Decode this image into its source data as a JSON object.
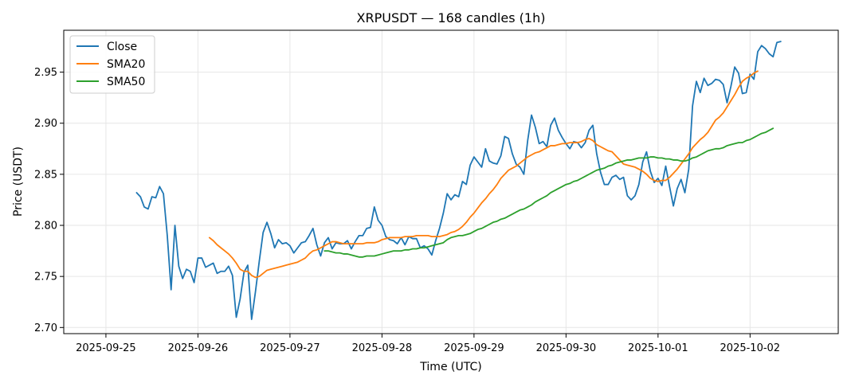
{
  "chart_data": {
    "type": "line",
    "title": "XRPUSDT — 168 candles (1h)",
    "xlabel": "Time (UTC)",
    "ylabel": "Price (USDT)",
    "xlim": [
      -11,
      191
    ],
    "ylim": [
      2.694,
      2.991
    ],
    "x_ticks": [
      {
        "label": "2025-09-25",
        "x": 0
      },
      {
        "label": "2025-09-26",
        "x": 24
      },
      {
        "label": "2025-09-27",
        "x": 48
      },
      {
        "label": "2025-09-28",
        "x": 72
      },
      {
        "label": "2025-09-29",
        "x": 96
      },
      {
        "label": "2025-09-30",
        "x": 120
      },
      {
        "label": "2025-10-01",
        "x": 144
      },
      {
        "label": "2025-10-02",
        "x": 168
      }
    ],
    "y_ticks": [
      2.7,
      2.75,
      2.8,
      2.85,
      2.9,
      2.95
    ],
    "y_tick_labels": [
      "2.70",
      "2.75",
      "2.80",
      "2.85",
      "2.90",
      "2.95"
    ],
    "grid": true,
    "legend_position": "top-left",
    "series": [
      {
        "name": "Close",
        "color": "#1f77b4",
        "x_start": 8,
        "values": [
          2.832,
          2.828,
          2.818,
          2.816,
          2.828,
          2.827,
          2.838,
          2.831,
          2.79,
          2.737,
          2.8,
          2.76,
          2.748,
          2.757,
          2.755,
          2.744,
          2.768,
          2.768,
          2.759,
          2.761,
          2.763,
          2.753,
          2.755,
          2.755,
          2.76,
          2.751,
          2.71,
          2.728,
          2.754,
          2.761,
          2.708,
          2.735,
          2.765,
          2.793,
          2.803,
          2.792,
          2.778,
          2.786,
          2.782,
          2.783,
          2.78,
          2.773,
          2.778,
          2.783,
          2.784,
          2.79,
          2.797,
          2.781,
          2.77,
          2.783,
          2.788,
          2.777,
          2.783,
          2.782,
          2.782,
          2.785,
          2.777,
          2.784,
          2.79,
          2.79,
          2.797,
          2.798,
          2.818,
          2.805,
          2.8,
          2.789,
          2.786,
          2.785,
          2.782,
          2.788,
          2.781,
          2.789,
          2.787,
          2.787,
          2.778,
          2.78,
          2.777,
          2.771,
          2.785,
          2.797,
          2.812,
          2.831,
          2.825,
          2.83,
          2.828,
          2.843,
          2.84,
          2.859,
          2.867,
          2.862,
          2.857,
          2.875,
          2.863,
          2.861,
          2.86,
          2.868,
          2.887,
          2.885,
          2.87,
          2.86,
          2.857,
          2.85,
          2.883,
          2.908,
          2.896,
          2.88,
          2.882,
          2.877,
          2.898,
          2.905,
          2.893,
          2.886,
          2.88,
          2.875,
          2.882,
          2.881,
          2.876,
          2.881,
          2.893,
          2.898,
          2.87,
          2.852,
          2.84,
          2.84,
          2.847,
          2.849,
          2.845,
          2.847,
          2.829,
          2.825,
          2.829,
          2.84,
          2.862,
          2.872,
          2.853,
          2.842,
          2.846,
          2.839,
          2.858,
          2.838,
          2.819,
          2.836,
          2.845,
          2.832,
          2.855,
          2.917,
          2.941,
          2.93,
          2.944,
          2.937,
          2.939,
          2.943,
          2.942,
          2.938,
          2.92,
          2.936,
          2.955,
          2.949,
          2.929,
          2.93,
          2.948,
          2.943,
          2.97,
          2.976,
          2.973,
          2.968,
          2.965,
          2.979,
          2.98
        ]
      },
      {
        "name": "SMA20",
        "color": "#ff7f0e",
        "x_start": 27,
        "values": [
          2.788,
          2.785,
          2.781,
          2.778,
          2.775,
          2.772,
          2.768,
          2.763,
          2.757,
          2.755,
          2.755,
          2.751,
          2.749,
          2.75,
          2.753,
          2.756,
          2.757,
          2.758,
          2.759,
          2.76,
          2.761,
          2.762,
          2.763,
          2.764,
          2.766,
          2.768,
          2.772,
          2.775,
          2.776,
          2.778,
          2.78,
          2.782,
          2.784,
          2.784,
          2.783,
          2.782,
          2.782,
          2.782,
          2.782,
          2.782,
          2.782,
          2.783,
          2.783,
          2.783,
          2.784,
          2.786,
          2.787,
          2.788,
          2.788,
          2.788,
          2.788,
          2.789,
          2.789,
          2.789,
          2.79,
          2.79,
          2.79,
          2.79,
          2.789,
          2.789,
          2.789,
          2.79,
          2.791,
          2.793,
          2.794,
          2.796,
          2.799,
          2.803,
          2.808,
          2.812,
          2.817,
          2.822,
          2.826,
          2.831,
          2.835,
          2.84,
          2.846,
          2.85,
          2.854,
          2.856,
          2.858,
          2.861,
          2.864,
          2.867,
          2.869,
          2.871,
          2.872,
          2.874,
          2.876,
          2.878,
          2.878,
          2.879,
          2.88,
          2.88,
          2.881,
          2.881,
          2.881,
          2.882,
          2.884,
          2.885,
          2.883,
          2.879,
          2.877,
          2.875,
          2.873,
          2.872,
          2.868,
          2.864,
          2.86,
          2.859,
          2.858,
          2.857,
          2.855,
          2.853,
          2.85,
          2.846,
          2.844,
          2.843,
          2.844,
          2.844,
          2.847,
          2.851,
          2.855,
          2.86,
          2.865,
          2.87,
          2.876,
          2.88,
          2.884,
          2.887,
          2.891,
          2.897,
          2.903,
          2.906,
          2.91,
          2.916,
          2.922,
          2.928,
          2.935,
          2.941,
          2.944,
          2.946,
          2.949,
          2.951
        ]
      },
      {
        "name": "SMA50",
        "color": "#2ca02c",
        "x_start": 57,
        "values": [
          2.775,
          2.775,
          2.774,
          2.773,
          2.773,
          2.772,
          2.772,
          2.771,
          2.77,
          2.769,
          2.769,
          2.77,
          2.77,
          2.77,
          2.771,
          2.772,
          2.773,
          2.774,
          2.775,
          2.775,
          2.775,
          2.776,
          2.776,
          2.777,
          2.777,
          2.778,
          2.778,
          2.779,
          2.78,
          2.781,
          2.782,
          2.783,
          2.786,
          2.788,
          2.789,
          2.79,
          2.79,
          2.791,
          2.792,
          2.794,
          2.796,
          2.797,
          2.799,
          2.801,
          2.803,
          2.804,
          2.806,
          2.807,
          2.809,
          2.811,
          2.813,
          2.815,
          2.816,
          2.818,
          2.82,
          2.823,
          2.825,
          2.827,
          2.829,
          2.832,
          2.834,
          2.836,
          2.838,
          2.84,
          2.841,
          2.843,
          2.844,
          2.846,
          2.848,
          2.85,
          2.852,
          2.854,
          2.855,
          2.856,
          2.858,
          2.859,
          2.861,
          2.862,
          2.863,
          2.864,
          2.864,
          2.865,
          2.866,
          2.866,
          2.866,
          2.867,
          2.867,
          2.866,
          2.866,
          2.865,
          2.865,
          2.864,
          2.864,
          2.863,
          2.863,
          2.864,
          2.866,
          2.867,
          2.869,
          2.871,
          2.873,
          2.874,
          2.875,
          2.875,
          2.876,
          2.878,
          2.879,
          2.88,
          2.881,
          2.881,
          2.883,
          2.884,
          2.886,
          2.888,
          2.89,
          2.891,
          2.893,
          2.895
        ]
      }
    ]
  }
}
